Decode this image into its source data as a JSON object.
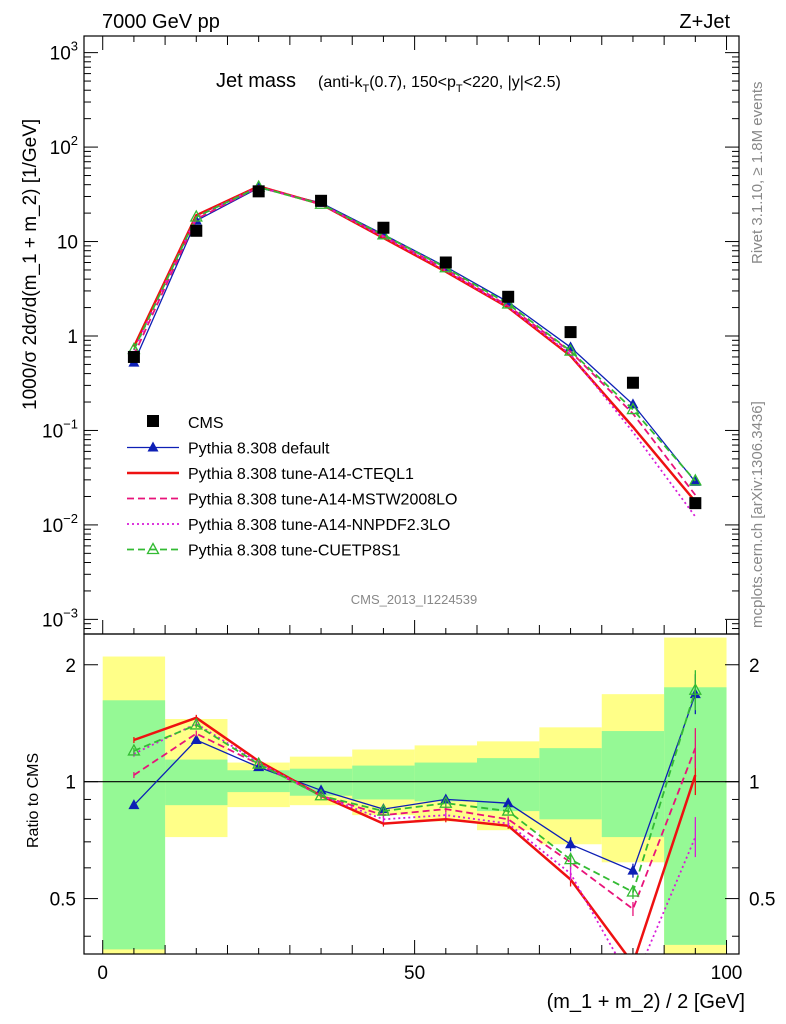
{
  "header": {
    "left": "7000 GeV pp",
    "right": "Z+Jet"
  },
  "side": {
    "rivet": "Rivet 3.1.10, ≥ 1.8M events",
    "mcplots": "mcplots.cern.ch [arXiv:1306.3436]"
  },
  "chart_data": {
    "type": "line",
    "title": "Jet mass",
    "title_detail": "(anti-k_T(0.7), 150<p_T<220, |y|<2.5)",
    "analysis_id": "CMS_2013_I1224539",
    "ylabel": "1000/σ 2dσ/d(m_1 + m_2) [1/GeV]",
    "ratio_ylabel": "Ratio to CMS",
    "xlabel": "(m_1 + m_2) / 2 [GeV]",
    "xlim": [
      -3,
      102
    ],
    "ylim": [
      0.0007,
      1500
    ],
    "yscale": "log",
    "ratio_ylim": [
      0.36,
      2.4
    ],
    "ratio_yscale": "log",
    "x_ticks": [
      0,
      50,
      100
    ],
    "y_ticks": [
      "10^-3",
      "10^-2",
      "10^-1",
      "1",
      "10",
      "10^2",
      "10^3"
    ],
    "ratio_ticks": [
      "0.5",
      "1",
      "2"
    ],
    "x": [
      5,
      15,
      25,
      35,
      45,
      55,
      65,
      75,
      85,
      95
    ],
    "bin_edges": [
      0,
      10,
      20,
      30,
      40,
      50,
      60,
      70,
      80,
      90,
      100
    ],
    "data": {
      "name": "CMS",
      "values": [
        0.6,
        13,
        34,
        27,
        14,
        6,
        2.6,
        1.1,
        0.32,
        0.017
      ]
    },
    "band_inner": [
      [
        0.37,
        1.62
      ],
      [
        0.87,
        1.14
      ],
      [
        0.94,
        1.07
      ],
      [
        0.92,
        1.08
      ],
      [
        0.9,
        1.1
      ],
      [
        0.89,
        1.12
      ],
      [
        0.84,
        1.15
      ],
      [
        0.8,
        1.22
      ],
      [
        0.72,
        1.35
      ],
      [
        0.38,
        1.75
      ]
    ],
    "band_outer": [
      [
        0.35,
        2.1
      ],
      [
        0.72,
        1.45
      ],
      [
        0.86,
        1.12
      ],
      [
        0.87,
        1.16
      ],
      [
        0.82,
        1.21
      ],
      [
        0.79,
        1.24
      ],
      [
        0.75,
        1.27
      ],
      [
        0.69,
        1.38
      ],
      [
        0.62,
        1.68
      ],
      [
        0.36,
        2.35
      ]
    ],
    "series": [
      {
        "name": "Pythia 8.308 default",
        "color": "#0d1fb5",
        "style": "solid",
        "marker": "triangle-filled",
        "ratio": [
          0.87,
          1.28,
          1.09,
          0.95,
          0.85,
          0.9,
          0.88,
          0.69,
          0.59,
          1.68
        ]
      },
      {
        "name": "Pythia 8.308 tune-A14-CTEQL1",
        "color": "#ee1111",
        "style": "solid-thick",
        "marker": "none",
        "ratio": [
          1.28,
          1.46,
          1.13,
          0.92,
          0.78,
          0.8,
          0.77,
          0.56,
          0.34,
          1.04
        ]
      },
      {
        "name": "Pythia 8.308 tune-A14-MSTW2008LO",
        "color": "#e8137a",
        "style": "dashed",
        "marker": "none",
        "ratio": [
          1.04,
          1.33,
          1.11,
          0.92,
          0.82,
          0.85,
          0.8,
          0.62,
          0.47,
          1.22
        ]
      },
      {
        "name": "Pythia 8.308 tune-A14-NNPDF2.3LO",
        "color": "#d81bd8",
        "style": "dotted",
        "marker": "none",
        "ratio": [
          1.18,
          1.41,
          1.12,
          0.92,
          0.8,
          0.82,
          0.78,
          0.58,
          0.3,
          0.72
        ]
      },
      {
        "name": "Pythia 8.308 tune-CUETP8S1",
        "color": "#33bb33",
        "style": "dashed",
        "marker": "triangle-open",
        "ratio": [
          1.2,
          1.4,
          1.11,
          0.92,
          0.84,
          0.88,
          0.84,
          0.63,
          0.52,
          1.72
        ]
      }
    ]
  }
}
